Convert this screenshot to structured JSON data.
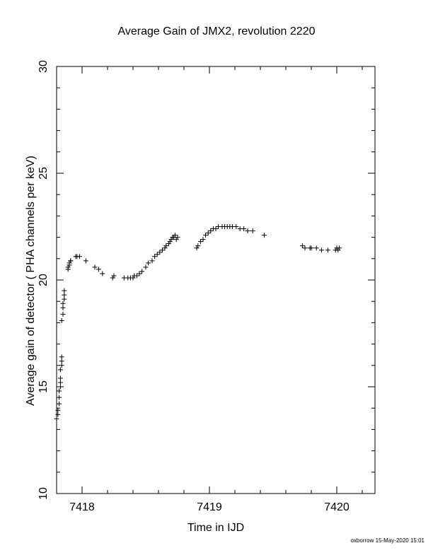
{
  "chart_data": {
    "type": "scatter",
    "title": "Average Gain of JMX2, revolution 2220",
    "xlabel": "Time in IJD",
    "ylabel": "Average gain of detector ( PHA channels per keV)",
    "xlim": [
      7417.8,
      7420.3
    ],
    "ylim": [
      10,
      30
    ],
    "xticks": [
      7418,
      7419,
      7420
    ],
    "yticks": [
      10,
      15,
      20,
      25,
      30
    ],
    "grid": false,
    "marker": "+",
    "series": [
      {
        "x": [
          7417.8,
          7417.81,
          7417.81,
          7417.82,
          7417.82,
          7417.82,
          7417.83,
          7417.83,
          7417.83,
          7417.83,
          7417.84,
          7417.84,
          7417.84,
          7417.84,
          7417.85,
          7417.85,
          7417.85,
          7417.86,
          7417.86,
          7417.86,
          7417.89,
          7417.89,
          7417.9,
          7417.9,
          7417.91,
          7417.91,
          7417.95,
          7417.96,
          7417.98,
          7418.03,
          7418.1,
          7418.13,
          7418.16,
          7418.24,
          7418.25,
          7418.33,
          7418.36,
          7418.38,
          7418.4,
          7418.41,
          7418.43,
          7418.45,
          7418.47,
          7418.5,
          7418.52,
          7418.55,
          7418.57,
          7418.59,
          7418.61,
          7418.63,
          7418.65,
          7418.66,
          7418.68,
          7418.69,
          7418.7,
          7418.71,
          7418.72,
          7418.73,
          7418.74,
          7418.75,
          7418.9,
          7418.91,
          7418.93,
          7418.95,
          7418.97,
          7418.99,
          7419.01,
          7419.03,
          7419.05,
          7419.07,
          7419.1,
          7419.12,
          7419.14,
          7419.16,
          7419.18,
          7419.21,
          7419.24,
          7419.27,
          7419.3,
          7419.34,
          7419.43,
          7419.73,
          7419.75,
          7419.79,
          7419.8,
          7419.84,
          7419.88,
          7419.93,
          7419.99,
          7420.0,
          7420.01,
          7420.02
        ],
        "y": [
          13.5,
          13.7,
          13.9,
          14.2,
          14.5,
          14.8,
          15.0,
          15.2,
          15.4,
          15.8,
          16.0,
          16.2,
          16.4,
          18.1,
          18.4,
          18.7,
          18.9,
          19.1,
          19.3,
          19.5,
          20.5,
          20.6,
          20.7,
          20.8,
          20.9,
          20.9,
          21.1,
          21.1,
          21.1,
          20.9,
          20.6,
          20.5,
          20.3,
          20.1,
          20.2,
          20.1,
          20.1,
          20.1,
          20.1,
          20.2,
          20.2,
          20.3,
          20.4,
          20.6,
          20.8,
          20.9,
          21.1,
          21.2,
          21.3,
          21.4,
          21.5,
          21.6,
          21.7,
          21.8,
          21.9,
          22.0,
          22.0,
          22.1,
          21.9,
          22.0,
          21.5,
          21.6,
          21.8,
          21.9,
          22.1,
          22.2,
          22.3,
          22.4,
          22.4,
          22.5,
          22.5,
          22.5,
          22.5,
          22.5,
          22.5,
          22.5,
          22.4,
          22.4,
          22.3,
          22.3,
          22.1,
          21.6,
          21.5,
          21.5,
          21.5,
          21.5,
          21.4,
          21.4,
          21.4,
          21.5,
          21.4,
          21.5
        ]
      }
    ]
  },
  "footer": "oxborrow 15-May-2020 15:01"
}
